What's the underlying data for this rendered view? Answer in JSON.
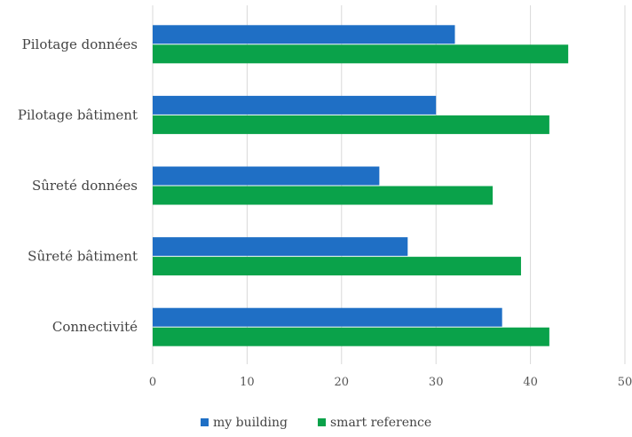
{
  "chart_data": {
    "type": "bar",
    "orientation": "horizontal",
    "categories": [
      "Pilotage données",
      "Pilotage bâtiment",
      "Sûreté données",
      "Sûreté bâtiment",
      "Connectivité"
    ],
    "series": [
      {
        "name": "my building",
        "color": "#1f6fc5",
        "values": [
          32,
          30,
          24,
          27,
          37
        ]
      },
      {
        "name": "smart reference",
        "color": "#0aa24a",
        "values": [
          44,
          42,
          36,
          39,
          42
        ]
      }
    ],
    "xlim": [
      0,
      50
    ],
    "xticks": [
      0,
      10,
      20,
      30,
      40,
      50
    ],
    "grid": "vertical",
    "legend_position": "bottom",
    "title": "",
    "xlabel": "",
    "ylabel": ""
  }
}
